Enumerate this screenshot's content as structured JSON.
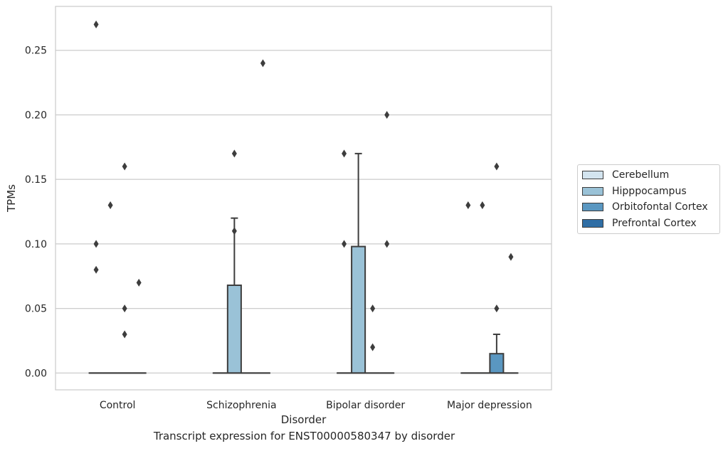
{
  "chart_data": {
    "type": "box",
    "caption": "Transcript expression for ENST00000580347 by disorder",
    "xlabel": "Disorder",
    "ylabel": "TPMs",
    "ylim": [
      -0.013,
      0.284
    ],
    "yticks": [
      0.0,
      0.05,
      0.1,
      0.15,
      0.2,
      0.25
    ],
    "ytick_labels": [
      "0.00",
      "0.05",
      "0.10",
      "0.15",
      "0.20",
      "0.25"
    ],
    "grid": true,
    "legend_position": "right",
    "categories": [
      "Control",
      "Schizophrenia",
      "Bipolar disorder",
      "Major depression"
    ],
    "series": [
      {
        "name": "Cerebellum",
        "color": "#d3e4ef",
        "boxes": [
          {
            "q1": 0,
            "median": 0,
            "q3": 0,
            "whisker_low": 0,
            "whisker_high": 0,
            "outliers": [
              0.27,
              0.1,
              0.08
            ]
          },
          {
            "q1": 0,
            "median": 0,
            "q3": 0,
            "whisker_low": 0,
            "whisker_high": 0,
            "outliers": []
          },
          {
            "q1": 0,
            "median": 0,
            "q3": 0,
            "whisker_low": 0,
            "whisker_high": 0,
            "outliers": [
              0.17,
              0.1
            ]
          },
          {
            "q1": 0,
            "median": 0,
            "q3": 0,
            "whisker_low": 0,
            "whisker_high": 0,
            "outliers": [
              0.13
            ]
          }
        ]
      },
      {
        "name": "Hipppocampus",
        "color": "#9ac2d7",
        "boxes": [
          {
            "q1": 0,
            "median": 0,
            "q3": 0,
            "whisker_low": 0,
            "whisker_high": 0,
            "outliers": [
              0.13
            ]
          },
          {
            "q1": 0,
            "median": 0,
            "q3": 0.068,
            "whisker_low": 0,
            "whisker_high": 0.12,
            "outliers": [
              0.17,
              0.11
            ]
          },
          {
            "q1": 0,
            "median": 0,
            "q3": 0.098,
            "whisker_low": 0,
            "whisker_high": 0.17,
            "outliers": []
          },
          {
            "q1": 0,
            "median": 0,
            "q3": 0,
            "whisker_low": 0,
            "whisker_high": 0,
            "outliers": [
              0.13
            ]
          }
        ]
      },
      {
        "name": "Orbitofontal Cortex",
        "color": "#5a97c1",
        "boxes": [
          {
            "q1": 0,
            "median": 0,
            "q3": 0,
            "whisker_low": 0,
            "whisker_high": 0,
            "outliers": [
              0.16,
              0.05,
              0.03
            ]
          },
          {
            "q1": 0,
            "median": 0,
            "q3": 0,
            "whisker_low": 0,
            "whisker_high": 0,
            "outliers": []
          },
          {
            "q1": 0,
            "median": 0,
            "q3": 0,
            "whisker_low": 0,
            "whisker_high": 0,
            "outliers": [
              0.05,
              0.02
            ]
          },
          {
            "q1": 0,
            "median": 0,
            "q3": 0.015,
            "whisker_low": 0,
            "whisker_high": 0.03,
            "outliers": [
              0.16,
              0.05
            ]
          }
        ]
      },
      {
        "name": "Prefrontal Cortex",
        "color": "#2f6ea5",
        "boxes": [
          {
            "q1": 0,
            "median": 0,
            "q3": 0,
            "whisker_low": 0,
            "whisker_high": 0,
            "outliers": [
              0.07
            ]
          },
          {
            "q1": 0,
            "median": 0,
            "q3": 0,
            "whisker_low": 0,
            "whisker_high": 0,
            "outliers": [
              0.24
            ]
          },
          {
            "q1": 0,
            "median": 0,
            "q3": 0,
            "whisker_low": 0,
            "whisker_high": 0,
            "outliers": [
              0.2,
              0.1
            ]
          },
          {
            "q1": 0,
            "median": 0,
            "q3": 0,
            "whisker_low": 0,
            "whisker_high": 0,
            "outliers": [
              0.09
            ]
          }
        ]
      }
    ]
  }
}
